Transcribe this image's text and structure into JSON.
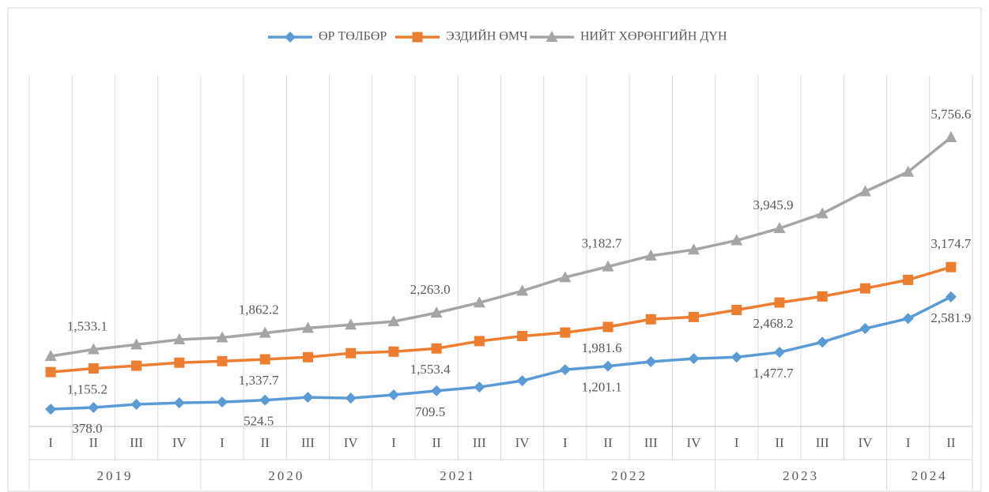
{
  "chart_data": {
    "type": "line",
    "year_groups": [
      {
        "name": "2019",
        "quarters": [
          "I",
          "II",
          "III",
          "IV"
        ]
      },
      {
        "name": "2020",
        "quarters": [
          "I",
          "II",
          "III",
          "IV"
        ]
      },
      {
        "name": "2021",
        "quarters": [
          "I",
          "II",
          "III",
          "IV"
        ]
      },
      {
        "name": "2022",
        "quarters": [
          "I",
          "II",
          "III",
          "IV"
        ]
      },
      {
        "name": "2023",
        "quarters": [
          "I",
          "II",
          "III",
          "IV"
        ]
      },
      {
        "name": "2024",
        "quarters": [
          "I",
          "II"
        ]
      }
    ],
    "series": [
      {
        "name": "ӨР ТӨЛБӨР",
        "color": "#5b9bd5",
        "marker": "diamond",
        "values": [
          345,
          378.0,
          440,
          470,
          485,
          524.5,
          580,
          565,
          630,
          709.5,
          785,
          910,
          1130,
          1201.1,
          1290,
          1350,
          1380,
          1477.7,
          1680,
          1950,
          2150,
          2581.9
        ],
        "value_labels": [
          null,
          "378.0",
          null,
          null,
          null,
          "524.5",
          null,
          null,
          null,
          "709.5",
          null,
          null,
          null,
          "1,201.1",
          null,
          null,
          null,
          "1,477.7",
          null,
          null,
          null,
          "2,581.9"
        ]
      },
      {
        "name": "ЭЗДИЙН ӨМЧ",
        "color": "#ed7d31",
        "marker": "square",
        "values": [
          1083,
          1155.2,
          1210,
          1270,
          1300,
          1337.7,
          1380,
          1460,
          1490,
          1553.4,
          1700,
          1800,
          1870,
          1981.6,
          2135,
          2180,
          2320,
          2468.2,
          2590,
          2750,
          2920,
          3174.7
        ],
        "value_labels": [
          null,
          "1,155.2",
          null,
          null,
          null,
          "1,337.7",
          null,
          null,
          null,
          "1,553.4",
          null,
          null,
          null,
          "1,981.6",
          null,
          null,
          null,
          "2,468.2",
          null,
          null,
          null,
          "3,174.7"
        ]
      },
      {
        "name": "НИЙТ ХӨРӨНГИЙН ДҮН",
        "color": "#a5a5a5",
        "marker": "triangle",
        "values": [
          1400,
          1533.1,
          1630,
          1730,
          1770,
          1862.2,
          1960,
          2025,
          2090,
          2263.0,
          2465,
          2700,
          2970,
          3182.7,
          3400,
          3520,
          3705,
          3945.9,
          4240,
          4680,
          5070,
          5756.6
        ],
        "value_labels": [
          null,
          "1,533.1",
          null,
          null,
          null,
          "1,862.2",
          null,
          null,
          null,
          "2,263.0",
          null,
          null,
          null,
          "3,182.7",
          null,
          null,
          null,
          "3,945.9",
          null,
          null,
          null,
          "5,756.6"
        ]
      }
    ],
    "ylim": [
      0,
      7000
    ],
    "legend": "top"
  }
}
